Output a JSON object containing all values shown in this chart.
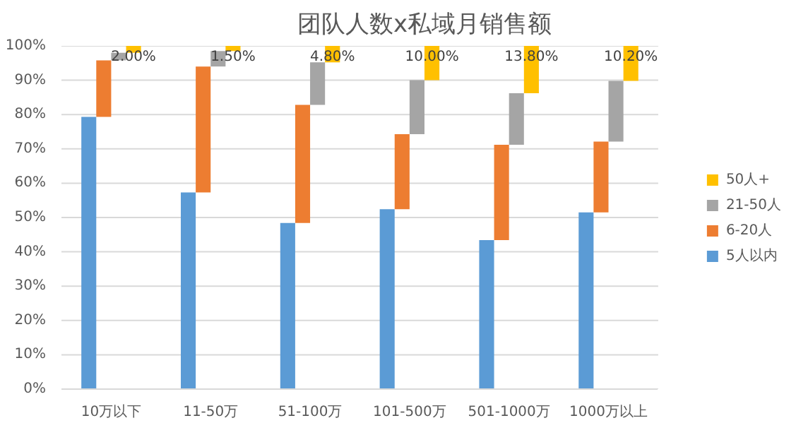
{
  "chart_data": {
    "type": "bar",
    "stacked": true,
    "title": "团队人数x私域月销售额",
    "categories": [
      "10万以下",
      "11-50万",
      "51-100万",
      "101-500万",
      "501-1000万",
      "1000万以上"
    ],
    "series": [
      {
        "name": "5人以内",
        "color": "#5b9bd5",
        "values": [
          79.3,
          57.3,
          48.4,
          52.4,
          43.4,
          51.5
        ]
      },
      {
        "name": "6-20人",
        "color": "#ed7d31",
        "values": [
          16.5,
          36.7,
          34.4,
          21.9,
          27.8,
          20.6
        ]
      },
      {
        "name": "21-50人",
        "color": "#a5a5a5",
        "values": [
          2.2,
          4.5,
          12.4,
          15.7,
          15.0,
          17.7
        ]
      },
      {
        "name": "50人+",
        "color": "#ffc000",
        "values": [
          2.0,
          1.5,
          4.8,
          10.0,
          13.8,
          10.2
        ],
        "value_labels": [
          "2.00%",
          "1.50%",
          "4.80%",
          "10.00%",
          "13.80%",
          "10.20%"
        ]
      }
    ],
    "ylim": [
      0,
      100
    ],
    "yticks": [
      {
        "value": 0,
        "label": "0%"
      },
      {
        "value": 10,
        "label": "10%"
      },
      {
        "value": 20,
        "label": "20%"
      },
      {
        "value": 30,
        "label": "30%"
      },
      {
        "value": 40,
        "label": "40%"
      },
      {
        "value": 50,
        "label": "50%"
      },
      {
        "value": 60,
        "label": "60%"
      },
      {
        "value": 70,
        "label": "70%"
      },
      {
        "value": 80,
        "label": "80%"
      },
      {
        "value": 90,
        "label": "90%"
      },
      {
        "value": 100,
        "label": "100%"
      }
    ],
    "grid": "y",
    "legend": "right"
  }
}
